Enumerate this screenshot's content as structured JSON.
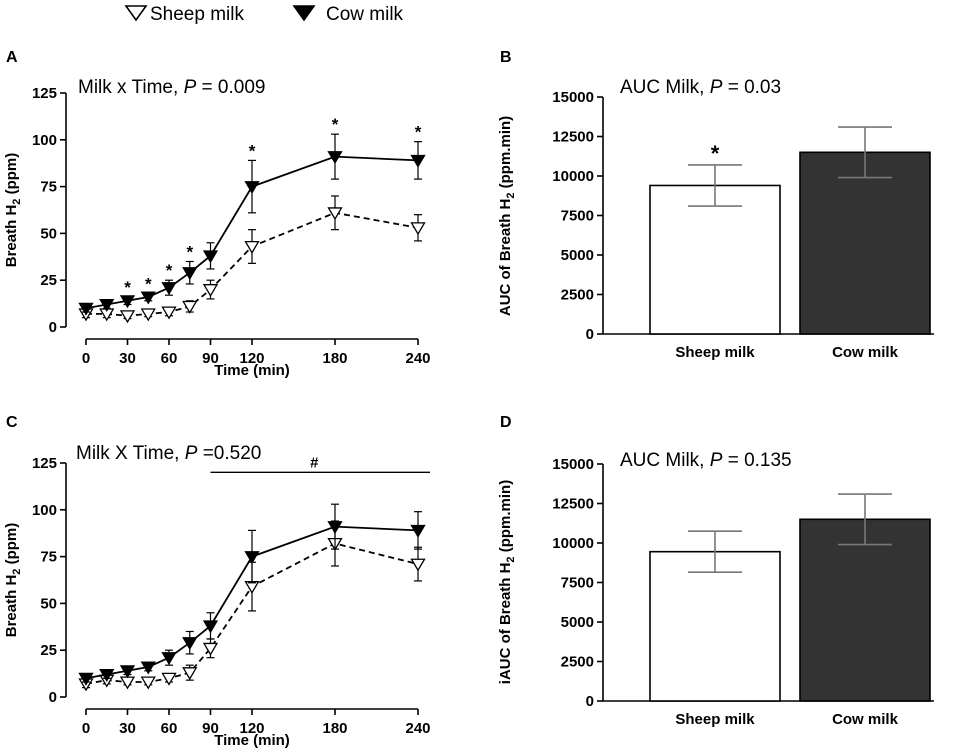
{
  "legend": {
    "items": [
      {
        "name": "sheep",
        "label": "Sheep milk",
        "marker": "open-triangle-down"
      },
      {
        "name": "cow",
        "label": "Cow milk",
        "marker": "filled-triangle-down"
      }
    ]
  },
  "colors": {
    "sheep_fill": "#ffffff",
    "cow_fill": "#333333",
    "error_bar": "#777777"
  },
  "chart_data": [
    {
      "panel": "A",
      "type": "line",
      "annotation": {
        "prefix": "Milk x Time, ",
        "p": "P",
        "suffix": " = 0.009"
      },
      "xlabel": "Time (min)",
      "ylabel_main": "Breath H",
      "ylabel_sub": "2",
      "ylabel_tail": " (ppm)",
      "xticks": [
        "0",
        "30",
        "60",
        "90",
        "120",
        "180",
        "240"
      ],
      "xtick_values": [
        0,
        30,
        60,
        90,
        120,
        180,
        240
      ],
      "yticks": [
        "0",
        "25",
        "50",
        "75",
        "100",
        "125"
      ],
      "ytick_values": [
        0,
        25,
        50,
        75,
        100,
        125
      ],
      "xlim": [
        0,
        240
      ],
      "ylim": [
        0,
        125
      ],
      "x": [
        0,
        15,
        30,
        45,
        60,
        75,
        90,
        120,
        180,
        240
      ],
      "series": [
        {
          "name": "Sheep milk",
          "style": "dashed",
          "marker": "open",
          "values": [
            7,
            7,
            6,
            7,
            8,
            11,
            20,
            43,
            61,
            53
          ],
          "errors": [
            2,
            2,
            1.5,
            1.5,
            2,
            3,
            5,
            9,
            9,
            7
          ]
        },
        {
          "name": "Cow milk",
          "style": "solid",
          "marker": "filled",
          "values": [
            10,
            12,
            14,
            16,
            21,
            29,
            38,
            75,
            91,
            89
          ],
          "errors": [
            2,
            2,
            2,
            2,
            4,
            6,
            7,
            14,
            12,
            10
          ]
        }
      ],
      "star_label": "*",
      "stars_at": [
        30,
        45,
        60,
        75,
        120,
        180,
        240
      ]
    },
    {
      "panel": "B",
      "type": "bar",
      "annotation": {
        "prefix": "AUC Milk, ",
        "p": "P",
        "suffix": " = 0.03"
      },
      "ylabel_main": "AUC of Breath H",
      "ylabel_sub": "2",
      "ylabel_tail": " (ppm.min)",
      "categories": [
        "Sheep milk",
        "Cow milk"
      ],
      "values": [
        9400,
        11500
      ],
      "errors": [
        1300,
        1600
      ],
      "yticks": [
        "0",
        "2500",
        "5000",
        "7500",
        "10000",
        "12500",
        "15000"
      ],
      "ytick_values": [
        0,
        2500,
        5000,
        7500,
        10000,
        12500,
        15000
      ],
      "ylim": [
        0,
        15000
      ],
      "star_label": "*"
    },
    {
      "panel": "C",
      "type": "line",
      "annotation": {
        "prefix": "Milk X Time, ",
        "p": "P",
        "suffix": " =0.520"
      },
      "xlabel": "Time (min)",
      "ylabel_main": "Breath H",
      "ylabel_sub": "2",
      "ylabel_tail": " (ppm)",
      "xticks": [
        "0",
        "30",
        "60",
        "90",
        "120",
        "180",
        "240"
      ],
      "xtick_values": [
        0,
        30,
        60,
        90,
        120,
        180,
        240
      ],
      "yticks": [
        "0",
        "25",
        "50",
        "75",
        "100",
        "125"
      ],
      "ytick_values": [
        0,
        25,
        50,
        75,
        100,
        125
      ],
      "xlim": [
        0,
        240
      ],
      "ylim": [
        0,
        125
      ],
      "x": [
        0,
        15,
        30,
        45,
        60,
        75,
        90,
        120,
        180,
        240
      ],
      "series": [
        {
          "name": "Sheep milk",
          "style": "dashed",
          "marker": "open",
          "values": [
            7,
            9,
            8,
            8,
            10,
            13,
            26,
            59,
            82,
            71
          ],
          "errors": [
            2,
            2,
            1.5,
            1.5,
            2,
            4,
            5,
            13,
            12,
            9
          ]
        },
        {
          "name": "Cow milk",
          "style": "solid",
          "marker": "filled",
          "values": [
            10,
            12,
            14,
            16,
            21,
            29,
            38,
            75,
            91,
            89
          ],
          "errors": [
            2,
            2,
            2,
            2,
            4,
            6,
            7,
            14,
            12,
            10
          ]
        }
      ],
      "significance_bar": {
        "from": 90,
        "to": 240,
        "y": 120,
        "label": "#"
      }
    },
    {
      "panel": "D",
      "type": "bar",
      "annotation": {
        "prefix": "AUC Milk, ",
        "p": "P",
        "suffix": " = 0.135"
      },
      "ylabel_main": "iAUC of Breath H",
      "ylabel_sub": "2",
      "ylabel_tail": " (ppm.min)",
      "categories": [
        "Sheep milk",
        "Cow milk"
      ],
      "values": [
        9450,
        11500
      ],
      "errors": [
        1300,
        1600
      ],
      "yticks": [
        "0",
        "2500",
        "5000",
        "7500",
        "10000",
        "12500",
        "15000"
      ],
      "ytick_values": [
        0,
        2500,
        5000,
        7500,
        10000,
        12500,
        15000
      ],
      "ylim": [
        0,
        15000
      ]
    }
  ]
}
